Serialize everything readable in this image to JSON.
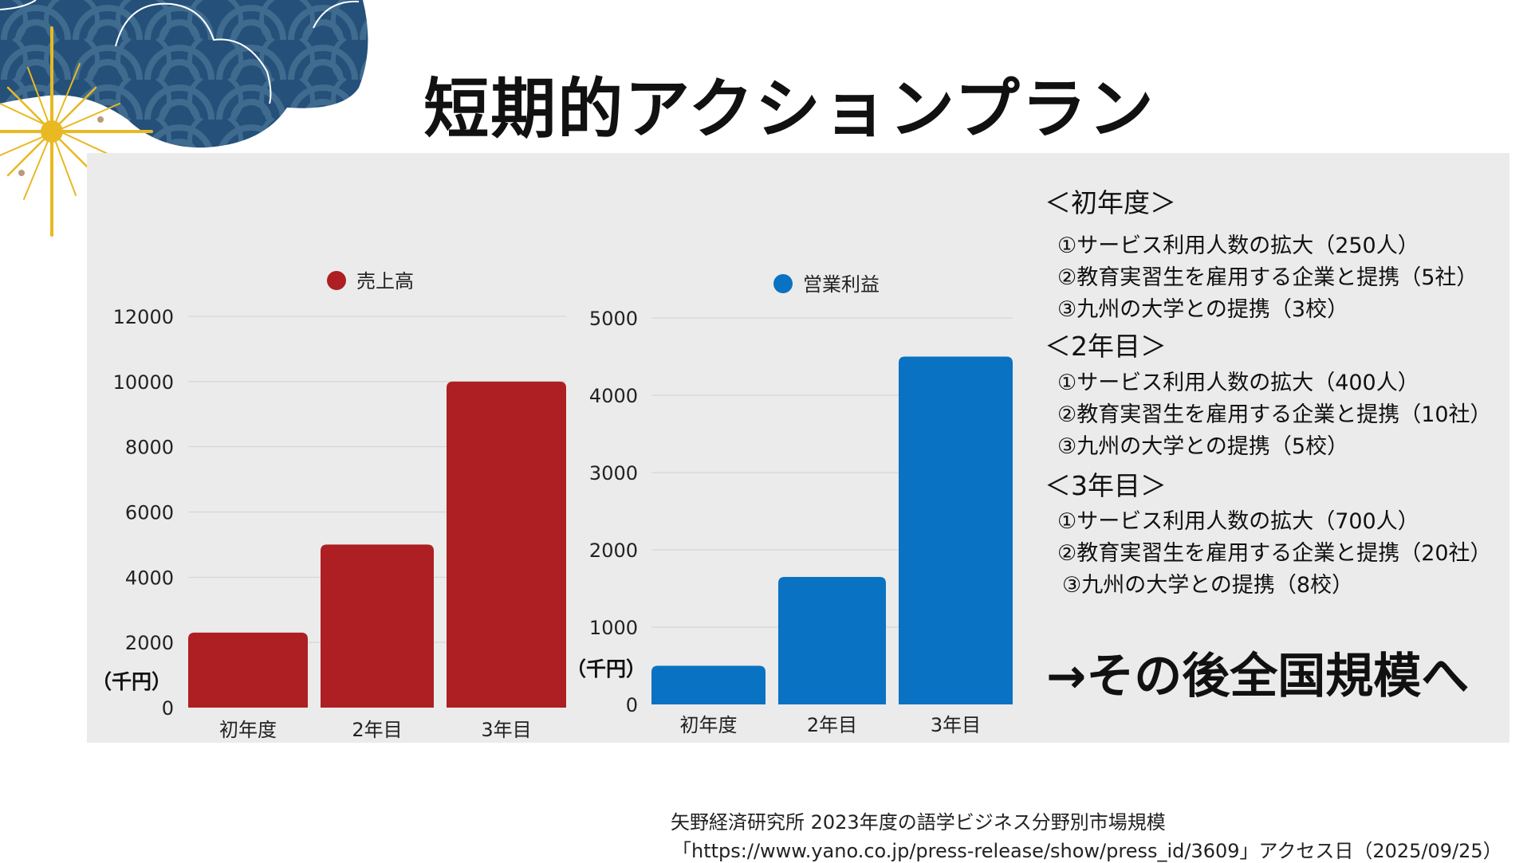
{
  "title": "短期的アクションプラン",
  "colors": {
    "sales": "#ad1f22",
    "profit": "#0a72c2",
    "panel": "#ebebeb",
    "grid": "#d0d0d0"
  },
  "chart_data": [
    {
      "type": "bar",
      "legend": "売上高",
      "categories": [
        "初年度",
        "2年目",
        "3年目"
      ],
      "values": [
        2300,
        5000,
        10000
      ],
      "ylim": [
        0,
        12000
      ],
      "yticks": [
        "0",
        "2000",
        "4000",
        "6000",
        "8000",
        "10000",
        "12000"
      ],
      "ylabel": "（千円）",
      "legend_position": "top"
    },
    {
      "type": "bar",
      "legend": "営業利益",
      "categories": [
        "初年度",
        "2年目",
        "3年目"
      ],
      "values": [
        500,
        1650,
        4500
      ],
      "ylim": [
        0,
        5000
      ],
      "yticks": [
        "0",
        "1000",
        "2000",
        "3000",
        "4000",
        "5000"
      ],
      "ylabel": "（千円）",
      "legend_position": "top"
    }
  ],
  "plan": [
    {
      "heading": "＜初年度＞",
      "items": [
        "①サービス利用人数の拡大（250人）",
        "②教育実習生を雇用する企業と提携（5社）",
        "③九州の大学との提携（3校）"
      ]
    },
    {
      "heading": "＜2年目＞",
      "items": [
        "①サービス利用人数の拡大（400人）",
        "②教育実習生を雇用する企業と提携（10社）",
        "③九州の大学との提携（5校）"
      ]
    },
    {
      "heading": "＜3年目＞",
      "items": [
        "①サービス利用人数の拡大（700人）",
        "②教育実習生を雇用する企業と提携（20社）",
        "③九州の大学との提携（8校）"
      ]
    }
  ],
  "conclusion": "→その後全国規模へ",
  "source": {
    "line1": "矢野経済研究所 2023年度の語学ビジネス分野別市場規模",
    "line2": "「https://www.yano.co.jp/press-release/show/press_id/3609」アクセス日（2025/09/25）"
  }
}
